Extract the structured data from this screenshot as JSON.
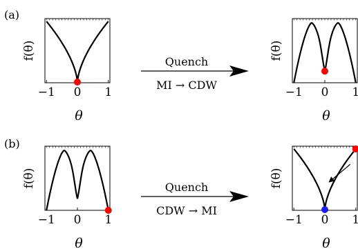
{
  "panels": [
    {
      "label": "(a)",
      "arrow_top": "Quench",
      "arrow_bottom": "MI → CDW",
      "before": {
        "ylabel": "f(θ)",
        "xticks": [
          "−1",
          "0",
          "1"
        ],
        "xlabel": "θ",
        "curve": "v-shape",
        "marker": {
          "x": 0,
          "color": "#ff0000"
        }
      },
      "after": {
        "ylabel": "f(θ)",
        "xticks": [
          "−1",
          "0",
          "1"
        ],
        "xlabel": "θ",
        "curve": "double-hump",
        "marker": {
          "x": 0,
          "color": "#ff0000"
        }
      }
    },
    {
      "label": "(b)",
      "arrow_top": "Quench",
      "arrow_bottom": "CDW → MI",
      "before": {
        "ylabel": "f(θ)",
        "xticks": [
          "−1",
          "0",
          "1"
        ],
        "xlabel": "θ",
        "curve": "double-hump",
        "marker": {
          "x": 1,
          "color": "#ff0000"
        }
      },
      "after": {
        "ylabel": "f(θ)",
        "xticks": [
          "−1",
          "0",
          "1"
        ],
        "xlabel": "θ",
        "curve": "v-shape",
        "marker": {
          "x": 1,
          "color": "#ff0000"
        },
        "marker2": {
          "x": 0,
          "color": "#1a1aff"
        },
        "relax_arrow": true
      }
    }
  ]
}
